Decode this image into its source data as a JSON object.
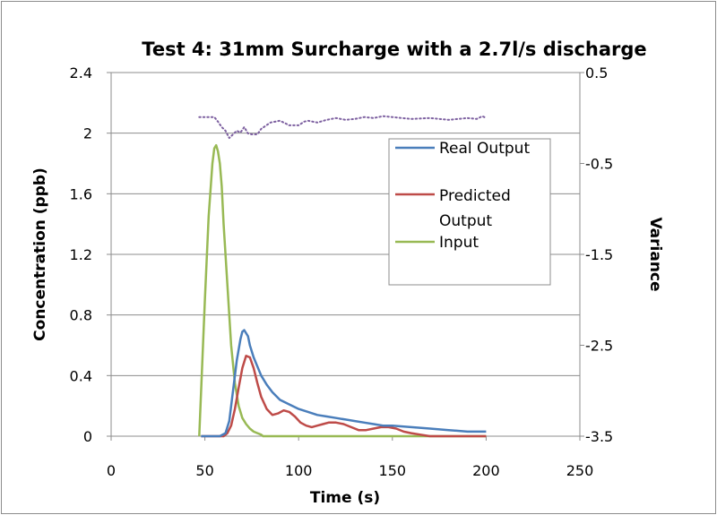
{
  "chart_data": {
    "type": "line",
    "title": "Test 4: 31mm Surcharge with a 2.7l/s discharge",
    "xlabel": "Time (s)",
    "ylabel": "Concentration (ppb)",
    "y2label": "Variance",
    "xlim": [
      0,
      250
    ],
    "ylim": [
      0,
      2.4
    ],
    "y2lim": [
      -3.5,
      0.5
    ],
    "x_ticks": [
      "0",
      "50",
      "100",
      "150",
      "200",
      "250"
    ],
    "y_ticks": [
      "0",
      "0.4",
      "0.8",
      "1.2",
      "1.6",
      "2",
      "2.4"
    ],
    "y2_ticks": [
      "-3.5",
      "-2.5",
      "-1.5",
      "-0.5",
      "0.5"
    ],
    "grid": "horizontal",
    "legend_position": "right",
    "series": [
      {
        "name": "Real Output",
        "color": "#4a7ebb",
        "axis": "left",
        "x": [
          48,
          58,
          61,
          63,
          65,
          67,
          69,
          70,
          71,
          72,
          73,
          74,
          76,
          78,
          80,
          83,
          86,
          90,
          95,
          100,
          105,
          110,
          115,
          120,
          125,
          130,
          135,
          140,
          145,
          150,
          160,
          170,
          180,
          190,
          200
        ],
        "y": [
          0,
          0,
          0.02,
          0.1,
          0.3,
          0.5,
          0.64,
          0.69,
          0.7,
          0.68,
          0.66,
          0.6,
          0.52,
          0.46,
          0.4,
          0.34,
          0.29,
          0.24,
          0.21,
          0.18,
          0.16,
          0.14,
          0.13,
          0.12,
          0.11,
          0.1,
          0.09,
          0.08,
          0.07,
          0.07,
          0.06,
          0.05,
          0.04,
          0.03,
          0.03
        ]
      },
      {
        "name": "Predicted Output",
        "color": "#be4b48",
        "axis": "left",
        "x": [
          48,
          60,
          62,
          64,
          66,
          68,
          70,
          72,
          74,
          76,
          78,
          80,
          83,
          86,
          89,
          92,
          95,
          98,
          101,
          104,
          107,
          110,
          113,
          116,
          120,
          124,
          128,
          132,
          136,
          140,
          144,
          148,
          152,
          156,
          160,
          165,
          170,
          180,
          190,
          200
        ],
        "y": [
          0,
          0,
          0.02,
          0.07,
          0.18,
          0.32,
          0.45,
          0.53,
          0.52,
          0.45,
          0.35,
          0.26,
          0.18,
          0.14,
          0.15,
          0.17,
          0.16,
          0.13,
          0.09,
          0.07,
          0.06,
          0.07,
          0.08,
          0.09,
          0.09,
          0.08,
          0.06,
          0.04,
          0.04,
          0.05,
          0.06,
          0.06,
          0.05,
          0.03,
          0.02,
          0.01,
          0,
          0,
          0,
          0
        ]
      },
      {
        "name": "Input",
        "color": "#98b954",
        "axis": "left",
        "x": [
          47,
          48,
          50,
          52,
          54,
          55,
          56,
          57,
          58,
          59,
          60,
          62,
          64,
          66,
          68,
          70,
          72,
          74,
          76,
          78,
          80,
          81,
          200
        ],
        "y": [
          0,
          0.3,
          0.9,
          1.45,
          1.8,
          1.9,
          1.92,
          1.88,
          1.8,
          1.65,
          1.4,
          1.0,
          0.6,
          0.35,
          0.2,
          0.12,
          0.08,
          0.05,
          0.03,
          0.02,
          0.01,
          0,
          0
        ]
      },
      {
        "name": "",
        "color": "#7d60a0",
        "axis": "right",
        "style": "dotted",
        "x": [
          47,
          55,
          57,
          59,
          61,
          63,
          65,
          67,
          69,
          71,
          73,
          75,
          78,
          80,
          85,
          90,
          93,
          95,
          100,
          103,
          105,
          110,
          115,
          120,
          125,
          130,
          135,
          140,
          145,
          150,
          155,
          160,
          170,
          180,
          190,
          195,
          198,
          200
        ],
        "y": [
          0.01,
          0.01,
          -0.04,
          -0.1,
          -0.14,
          -0.22,
          -0.18,
          -0.14,
          -0.16,
          -0.1,
          -0.17,
          -0.18,
          -0.18,
          -0.12,
          -0.05,
          -0.03,
          -0.06,
          -0.08,
          -0.08,
          -0.04,
          -0.03,
          -0.05,
          -0.02,
          0.0,
          -0.02,
          -0.01,
          0.01,
          0.0,
          0.02,
          0.01,
          0.0,
          -0.01,
          0.0,
          -0.02,
          0.0,
          -0.01,
          0.02,
          0.0
        ]
      }
    ]
  }
}
